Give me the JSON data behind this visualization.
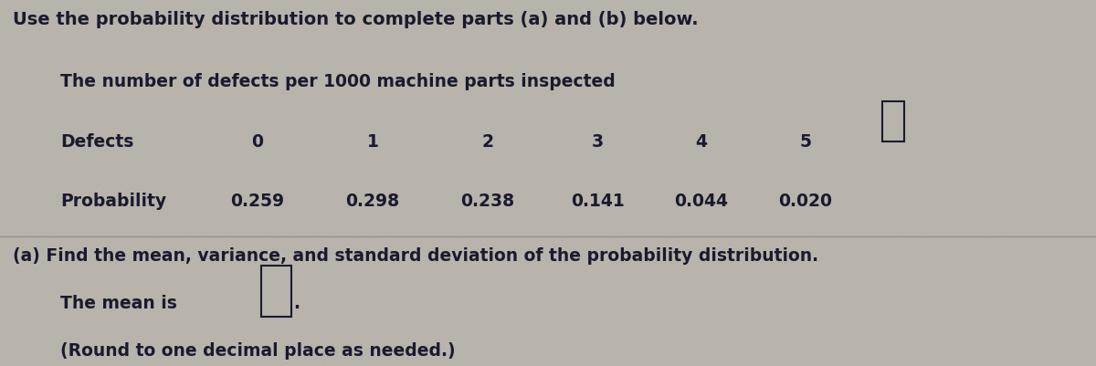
{
  "title_line": "Use the probability distribution to complete parts (a) and (b) below.",
  "table_title": "The number of defects per 1000 machine parts inspected",
  "row1_label": "Defects",
  "row2_label": "Probability",
  "defects": [
    "0",
    "1",
    "2",
    "3",
    "4",
    "5"
  ],
  "probabilities": [
    "0.259",
    "0.298",
    "0.238",
    "0.141",
    "0.044",
    "0.020"
  ],
  "part_a_text": "(a) Find the mean, variance, and standard deviation of the probability distribution.",
  "mean_text": "The mean is",
  "round_text": "(Round to one decimal place as needed.)",
  "bg_color": "#b8b4ac",
  "text_color": "#1a1a2e",
  "divider_color": "#888880",
  "font_size_title": 14,
  "font_size_table": 13.5,
  "font_size_body": 13.5
}
